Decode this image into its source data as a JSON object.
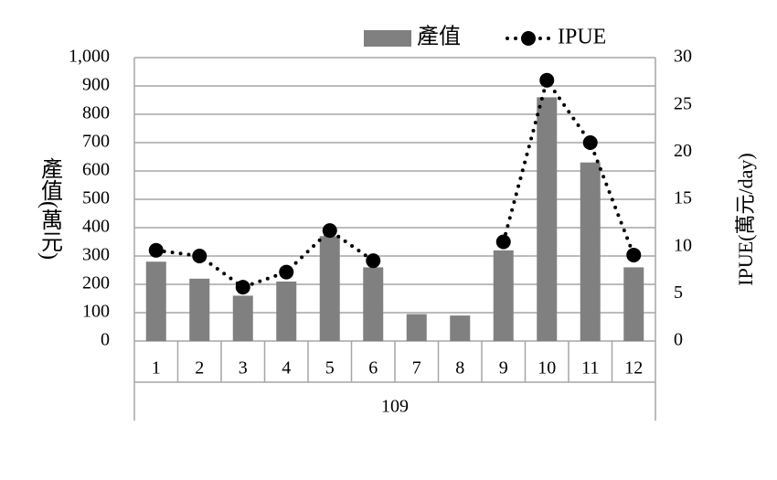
{
  "chart_data": {
    "type": "bar-line",
    "y_label": "產值(萬元)",
    "y2_label": "IPUE(萬元/day)",
    "categories": [
      "1",
      "2",
      "3",
      "4",
      "5",
      "6",
      "7",
      "8",
      "9",
      "10",
      "11",
      "12"
    ],
    "group_label": "109",
    "series": [
      {
        "name": "產值",
        "type": "bar",
        "color": "#808080",
        "values": [
          280,
          220,
          160,
          210,
          370,
          260,
          95,
          90,
          320,
          860,
          630,
          260
        ]
      },
      {
        "name": "IPUE",
        "type": "line",
        "axis": "y2",
        "color": "#000000",
        "values": [
          9.6,
          9.0,
          5.7,
          7.3,
          11.7,
          8.5,
          null,
          null,
          10.5,
          27.6,
          21.0,
          9.1
        ]
      }
    ],
    "ylim": [
      0,
      1000
    ],
    "yticks": [
      0,
      100,
      200,
      300,
      400,
      500,
      600,
      700,
      800,
      900,
      {
        "value": 1000,
        "label": "1,000"
      }
    ],
    "y2lim": [
      0,
      30
    ],
    "y2ticks": [
      0,
      5,
      10,
      15,
      20,
      25,
      30
    ],
    "grid": true,
    "legend": "top"
  }
}
